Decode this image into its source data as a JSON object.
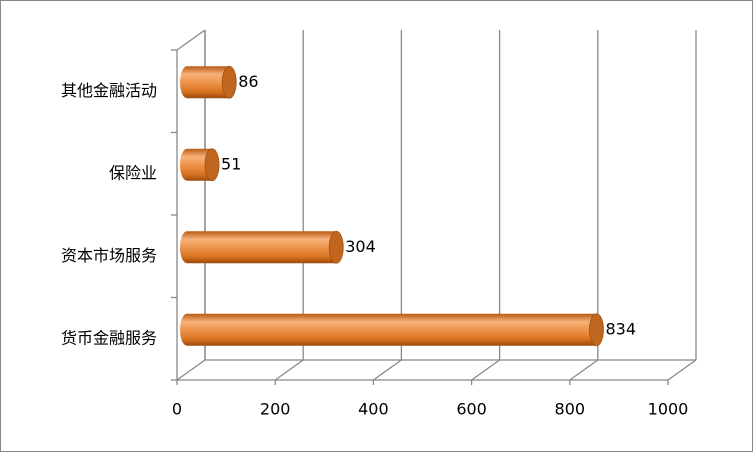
{
  "chart_data": {
    "type": "bar3d_horizontal",
    "categories": [
      "其他金融活动",
      "保险业",
      "资本市场服务",
      "货币金融服务"
    ],
    "values": [
      86,
      51,
      304,
      834
    ],
    "color": "#e8893a",
    "xlim": [
      0,
      1000
    ],
    "xticks": [
      0,
      200,
      400,
      600,
      800,
      1000
    ],
    "grid": true
  }
}
